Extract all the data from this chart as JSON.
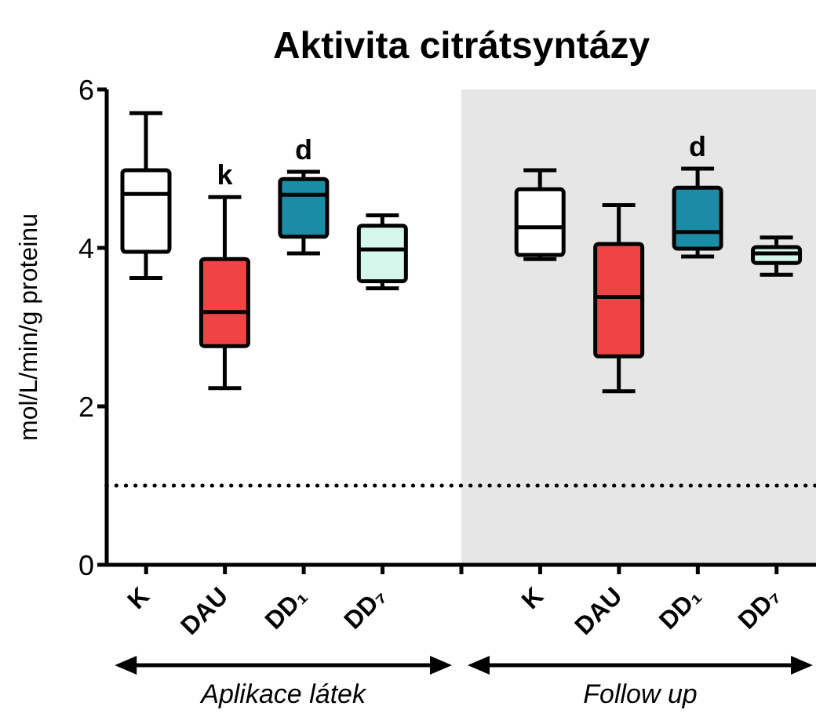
{
  "chart_data": {
    "type": "box",
    "title": "Aktivita citrátsyntázy",
    "ylabel": "mol/L/min/g proteinu",
    "categories": [
      "K",
      "DAU",
      "DD₁",
      "DD₇",
      null,
      "K",
      "DAU",
      "DD₁",
      "DD₇"
    ],
    "boxes": [
      {
        "low": 3.62,
        "q1": 3.95,
        "median": 4.68,
        "q3": 4.98,
        "high": 5.7
      },
      {
        "low": 2.23,
        "q1": 2.76,
        "median": 3.19,
        "q3": 3.86,
        "high": 4.64
      },
      {
        "low": 3.93,
        "q1": 4.14,
        "median": 4.67,
        "q3": 4.87,
        "high": 4.96
      },
      {
        "low": 3.49,
        "q1": 3.58,
        "median": 3.98,
        "q3": 4.28,
        "high": 4.41
      },
      null,
      {
        "low": 3.86,
        "q1": 3.91,
        "median": 4.26,
        "q3": 4.74,
        "high": 4.98
      },
      {
        "low": 2.19,
        "q1": 2.63,
        "median": 3.38,
        "q3": 4.05,
        "high": 4.54
      },
      {
        "low": 3.89,
        "q1": 3.99,
        "median": 4.2,
        "q3": 4.76,
        "high": 5.0
      },
      {
        "low": 3.66,
        "q1": 3.81,
        "median": 3.93,
        "q3": 4.01,
        "high": 4.13
      }
    ],
    "colors": [
      "#ffffff",
      "#f04444",
      "#1a8ca6",
      "#d6f7ec",
      null,
      "#ffffff",
      "#f04444",
      "#1a8ca6",
      "#d6f7ec"
    ],
    "value_labels": [
      null,
      "k",
      "d",
      null,
      null,
      null,
      null,
      "d",
      null
    ],
    "ylim": [
      0,
      6
    ],
    "yticks": [
      0,
      2,
      4,
      6
    ],
    "ref_lines": [
      {
        "axis": "y",
        "value": 1,
        "line_style": "dotted",
        "color": "#000000"
      }
    ],
    "annotations": [
      "Aplikace látek",
      "Follow up"
    ]
  }
}
